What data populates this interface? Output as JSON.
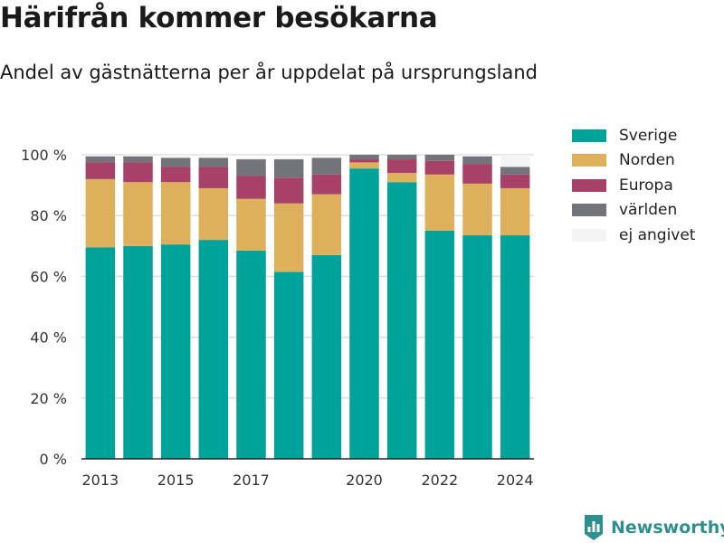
{
  "title": "Härifrån kommer besökarna",
  "subtitle": "Andel av gästnätterna per år uppdelat på ursprungsland",
  "brand": {
    "name": "Newsworthy"
  },
  "chart_data": {
    "type": "bar",
    "stacked": true,
    "categories": [
      "2013",
      "2014",
      "2015",
      "2016",
      "2017",
      "2018",
      "2019",
      "2020",
      "2021",
      "2022",
      "2023",
      "2024"
    ],
    "x_tick_labels": [
      "2013",
      "2015",
      "2017",
      "2020",
      "2022",
      "2024"
    ],
    "y_tick_labels": [
      "0 %",
      "20 %",
      "40 %",
      "60 %",
      "80 %",
      "100 %"
    ],
    "ylim": [
      0,
      100
    ],
    "grid": true,
    "legend_position": "right",
    "series": [
      {
        "name": "Sverige",
        "color": "#00a39a",
        "values": [
          69.5,
          70.0,
          70.5,
          72.0,
          68.5,
          61.5,
          67.0,
          95.5,
          91.0,
          75.0,
          73.5,
          73.5
        ]
      },
      {
        "name": "Norden",
        "color": "#dfb05c",
        "values": [
          22.5,
          21.0,
          20.5,
          17.0,
          17.0,
          22.5,
          20.0,
          2.0,
          3.0,
          18.5,
          17.0,
          15.5
        ]
      },
      {
        "name": "Europa",
        "color": "#a84167",
        "values": [
          5.5,
          6.5,
          5.0,
          7.0,
          7.5,
          8.5,
          6.5,
          1.0,
          4.5,
          4.5,
          6.5,
          4.5
        ]
      },
      {
        "name": "världen",
        "color": "#737479",
        "values": [
          2.0,
          2.0,
          3.0,
          3.0,
          5.5,
          6.0,
          5.5,
          1.5,
          1.5,
          2.0,
          2.5,
          2.5
        ]
      },
      {
        "name": "ej angivet",
        "color": "#f4f4f4",
        "values": [
          0.5,
          0.5,
          1.0,
          1.0,
          0.5,
          0.5,
          0.5,
          0.0,
          0.0,
          0.0,
          0.5,
          4.0
        ]
      }
    ]
  }
}
